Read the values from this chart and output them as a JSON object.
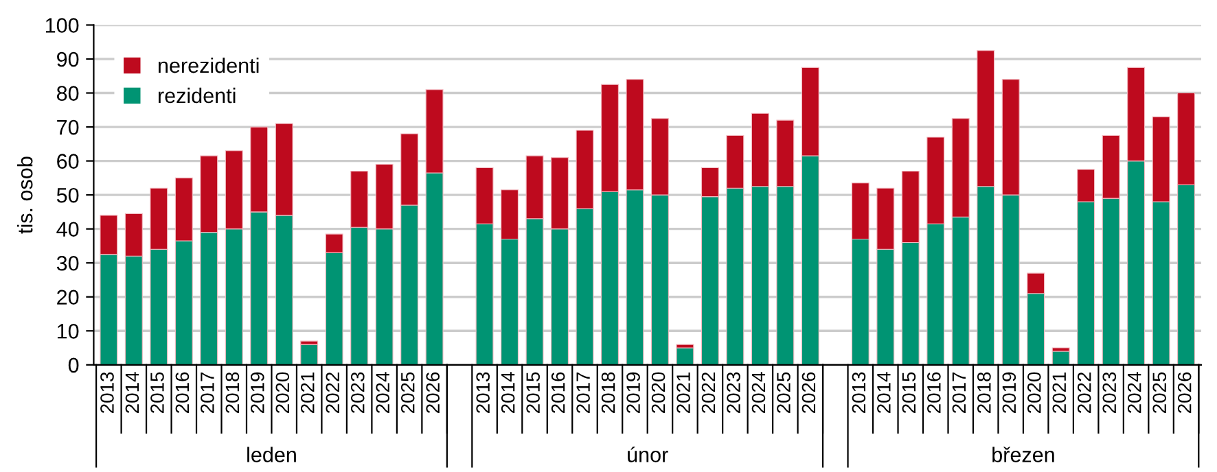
{
  "chart_data": {
    "type": "bar",
    "stacked": true,
    "ylabel": "tis. osob",
    "categories": [
      "2013",
      "2014",
      "2015",
      "2016",
      "2017",
      "2018",
      "2019",
      "2020",
      "2021",
      "2022",
      "2023",
      "2024",
      "2025",
      "2026",
      null,
      "2013",
      "2014",
      "2015",
      "2016",
      "2017",
      "2018",
      "2019",
      "2020",
      "2021",
      "2022",
      "2023",
      "2024",
      "2025",
      "2026",
      null,
      "2013",
      "2014",
      "2015",
      "2016",
      "2017",
      "2018",
      "2019",
      "2020",
      "2021",
      "2022",
      "2023",
      "2024",
      "2025",
      "2026"
    ],
    "series": [
      {
        "name": "rezidenti",
        "color": "#009473",
        "values": [
          32.5,
          32,
          34,
          36.5,
          39,
          40,
          45,
          44,
          6,
          33,
          40.5,
          40,
          47,
          56.5,
          null,
          41.5,
          37,
          43,
          40,
          46,
          51,
          51.5,
          50,
          5,
          49.5,
          52,
          52.5,
          52.5,
          61.5,
          null,
          37,
          34,
          36,
          41.5,
          43.5,
          52.5,
          50,
          21,
          4,
          48,
          49,
          60,
          48,
          53
        ]
      },
      {
        "name": "nerezidenti",
        "color": "#be0a1e",
        "values": [
          11.5,
          12.5,
          18,
          18.5,
          22.5,
          23,
          25,
          27,
          1,
          5.5,
          16.5,
          19,
          21,
          24.5,
          null,
          16.5,
          14.5,
          18.5,
          21,
          23,
          31.5,
          32.5,
          22.5,
          1,
          8.5,
          15.5,
          21.5,
          19.5,
          26,
          null,
          16.5,
          18,
          21,
          25.5,
          29,
          40,
          34,
          6,
          1,
          9.5,
          18.5,
          27.5,
          25,
          27
        ]
      }
    ],
    "annotations": [
      "leden",
      "únor",
      "březen"
    ],
    "ylim": [
      0,
      100
    ],
    "yticks": [
      0,
      10,
      20,
      30,
      40,
      50,
      60,
      70,
      80,
      90,
      100
    ],
    "grid": "y",
    "legend": "top left"
  }
}
